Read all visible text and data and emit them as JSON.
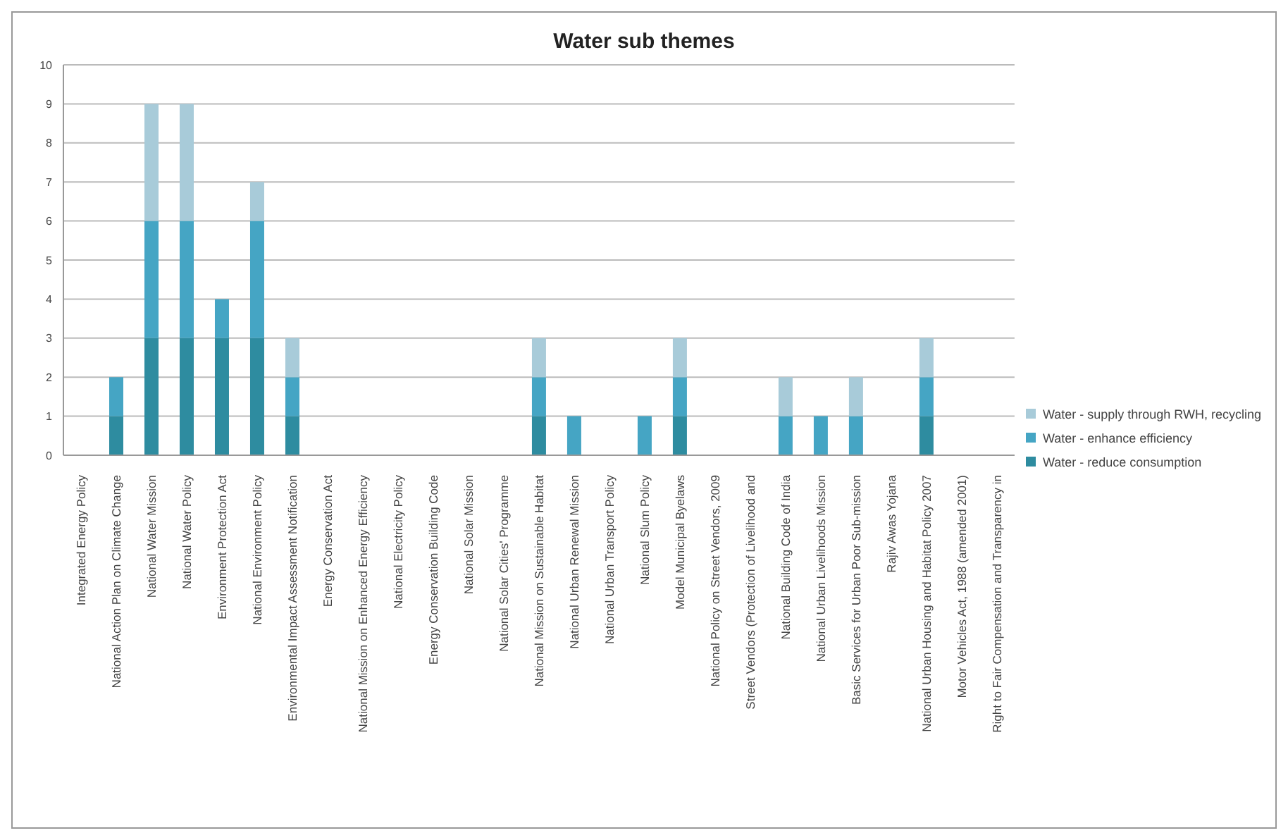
{
  "chart_data": {
    "type": "bar",
    "title": "Water sub themes",
    "stacked": true,
    "categories": [
      "Integrated Energy Policy",
      "National Action Plan on Climate Change",
      "National Water Mission",
      "National Water Policy",
      "Environment Protection Act",
      "National Environment Policy",
      "Environmental Impact Assessment Notification",
      "Energy Conservation Act",
      "National Mission on Enhanced Energy Efficiency",
      "National Electricity Policy",
      "Energy Conservation Building Code",
      "National Solar Mission",
      "National Solar Cities' Programme",
      "National Mission on Sustainable Habitat",
      "National Urban Renewal Mission",
      "National Urban Transport Policy",
      "National Slum Policy",
      "Model Municipal Byelaws",
      "National Policy on Street Vendors, 2009",
      "Street Vendors (Protection of Livelihood and",
      "National Building Code of India",
      "National Urban Livelihoods Mission",
      "Basic Services for Urban Poor Sub-mission",
      "Rajiv Awas Yojana",
      "National Urban Housing and Habitat Policy 2007",
      "Motor Vehicles Act, 1988 (amended 2001)",
      "Right to Fair Compensation and Transparency in"
    ],
    "series": [
      {
        "name": "Water - reduce consumption",
        "color": "#2e8ca0",
        "values": [
          0,
          1,
          3,
          3,
          3,
          3,
          1,
          0,
          0,
          0,
          0,
          0,
          0,
          1,
          0,
          0,
          0,
          1,
          0,
          0,
          0,
          0,
          0,
          0,
          1,
          0,
          0
        ]
      },
      {
        "name": "Water - enhance efficiency",
        "color": "#45a5c4",
        "values": [
          0,
          1,
          3,
          3,
          1,
          3,
          1,
          0,
          0,
          0,
          0,
          0,
          0,
          1,
          1,
          0,
          1,
          1,
          0,
          0,
          1,
          1,
          1,
          0,
          1,
          0,
          0
        ]
      },
      {
        "name": "Water - supply through RWH, recycling",
        "color": "#a8cbd9",
        "values": [
          0,
          0,
          3,
          3,
          0,
          1,
          1,
          0,
          0,
          0,
          0,
          0,
          0,
          1,
          0,
          0,
          0,
          1,
          0,
          0,
          1,
          0,
          1,
          0,
          1,
          0,
          0
        ]
      }
    ],
    "ylim": [
      0,
      10
    ],
    "yticks": [
      0,
      1,
      2,
      3,
      4,
      5,
      6,
      7,
      8,
      9,
      10
    ],
    "grid": "y",
    "legend": "right"
  }
}
